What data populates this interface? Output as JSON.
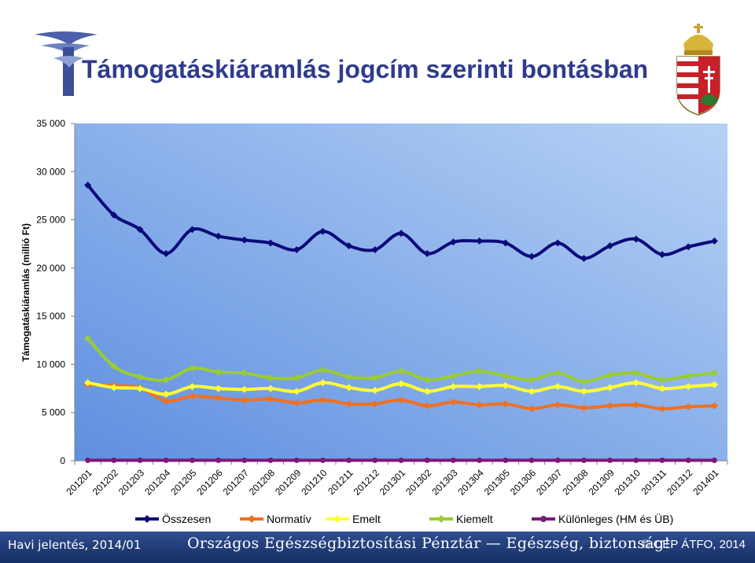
{
  "slide": {
    "title": "Támogatáskiáramlás jogcím szerinti bontásban",
    "footer_left": "Havi jelentés, 2014/01",
    "footer_center": "Országos Egészségbiztosítási Pénztár — Egészség, biztonság!",
    "footer_right": "© OEP ÁTFO, 2014"
  },
  "colors": {
    "plot_bg_light": "#b6d2f5",
    "plot_bg_dark": "#5f8fe0",
    "footer_bg": "#1f3a75",
    "title": "#2f3b8f"
  },
  "chart_data": {
    "type": "line",
    "title": "",
    "ylabel": "Támogatáskiáramlás (millió Ft)",
    "xlabel": "",
    "ylim": [
      0,
      35000
    ],
    "yticks": [
      0,
      5000,
      10000,
      15000,
      20000,
      25000,
      30000,
      35000
    ],
    "ytick_labels": [
      "0",
      "5 000",
      "10 000",
      "15 000",
      "20 000",
      "25 000",
      "30 000",
      "35 000"
    ],
    "grid": false,
    "legend_position": "bottom",
    "categories": [
      "201201",
      "201202",
      "201203",
      "201204",
      "201205",
      "201206",
      "201207",
      "201208",
      "201209",
      "201210",
      "201211",
      "201212",
      "201301",
      "201302",
      "201303",
      "201304",
      "201305",
      "201306",
      "201307",
      "201308",
      "201309",
      "201310",
      "201311",
      "201312",
      "201401"
    ],
    "series": [
      {
        "name": "Összesen",
        "color": "#0a0a7a",
        "values": [
          28600,
          25500,
          24000,
          21500,
          24000,
          23300,
          22900,
          22600,
          21900,
          23800,
          22300,
          21900,
          23600,
          21500,
          22700,
          22800,
          22600,
          21200,
          22600,
          21000,
          22300,
          23000,
          21400,
          22200,
          22800
        ]
      },
      {
        "name": "Normatív",
        "color": "#f07020",
        "values": [
          7900,
          7800,
          7600,
          6200,
          6700,
          6500,
          6300,
          6400,
          6000,
          6300,
          5900,
          5900,
          6300,
          5700,
          6100,
          5800,
          5900,
          5400,
          5800,
          5500,
          5700,
          5800,
          5400,
          5600,
          5700
        ]
      },
      {
        "name": "Emelt",
        "color": "#ffff33",
        "values": [
          8100,
          7600,
          7500,
          6900,
          7700,
          7500,
          7400,
          7500,
          7200,
          8100,
          7600,
          7300,
          8000,
          7200,
          7700,
          7700,
          7800,
          7200,
          7700,
          7200,
          7600,
          8100,
          7500,
          7700,
          7900
        ]
      },
      {
        "name": "Kiemelt",
        "color": "#99cc33",
        "values": [
          12700,
          9800,
          8700,
          8400,
          9600,
          9200,
          9100,
          8600,
          8600,
          9400,
          8700,
          8600,
          9300,
          8400,
          8800,
          9300,
          8800,
          8400,
          9100,
          8200,
          8900,
          9100,
          8400,
          8800,
          9100
        ]
      },
      {
        "name": "Különleges (HM és ÜB)",
        "color": "#7a1a7a",
        "values": [
          50,
          50,
          50,
          50,
          50,
          50,
          50,
          50,
          50,
          50,
          50,
          50,
          50,
          50,
          50,
          50,
          50,
          50,
          50,
          50,
          50,
          50,
          50,
          50,
          50
        ]
      }
    ]
  }
}
